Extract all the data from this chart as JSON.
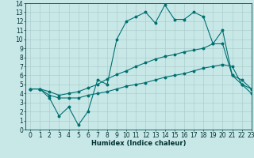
{
  "title": "",
  "xlabel": "Humidex (Indice chaleur)",
  "background_color": "#c8e8e8",
  "grid_color": "#a8c8c8",
  "line_color": "#007070",
  "line1_x": [
    0,
    1,
    2,
    3,
    4,
    5,
    6,
    7,
    8,
    9,
    10,
    11,
    12,
    13,
    14,
    15,
    16,
    17,
    18,
    19,
    20,
    21,
    22,
    23
  ],
  "line1_y": [
    4.5,
    4.5,
    3.5,
    1.5,
    2.5,
    0.5,
    2.0,
    5.5,
    5.0,
    10.0,
    12.0,
    12.5,
    13.0,
    11.8,
    13.8,
    12.2,
    12.2,
    13.0,
    12.5,
    9.5,
    11.0,
    6.0,
    5.0,
    4.5
  ],
  "line2_x": [
    0,
    1,
    2,
    3,
    4,
    5,
    6,
    7,
    8,
    9,
    10,
    11,
    12,
    13,
    14,
    15,
    16,
    17,
    18,
    19,
    20,
    21,
    22,
    23
  ],
  "line2_y": [
    4.5,
    4.5,
    4.2,
    3.8,
    4.0,
    4.2,
    4.6,
    5.0,
    5.6,
    6.1,
    6.5,
    7.0,
    7.4,
    7.8,
    8.1,
    8.3,
    8.6,
    8.8,
    9.0,
    9.5,
    9.5,
    6.0,
    5.5,
    4.5
  ],
  "line3_x": [
    0,
    1,
    2,
    3,
    4,
    5,
    6,
    7,
    8,
    9,
    10,
    11,
    12,
    13,
    14,
    15,
    16,
    17,
    18,
    19,
    20,
    21,
    22,
    23
  ],
  "line3_y": [
    4.5,
    4.5,
    3.8,
    3.5,
    3.5,
    3.5,
    3.8,
    4.0,
    4.2,
    4.5,
    4.8,
    5.0,
    5.2,
    5.5,
    5.8,
    6.0,
    6.2,
    6.5,
    6.8,
    7.0,
    7.2,
    7.0,
    5.0,
    4.0
  ],
  "ylim": [
    0,
    14
  ],
  "xlim": [
    -0.5,
    23
  ],
  "yticks": [
    0,
    1,
    2,
    3,
    4,
    5,
    6,
    7,
    8,
    9,
    10,
    11,
    12,
    13,
    14
  ],
  "xticks": [
    0,
    1,
    2,
    3,
    4,
    5,
    6,
    7,
    8,
    9,
    10,
    11,
    12,
    13,
    14,
    15,
    16,
    17,
    18,
    19,
    20,
    21,
    22,
    23
  ],
  "tick_fontsize": 5.5,
  "xlabel_fontsize": 6.0
}
